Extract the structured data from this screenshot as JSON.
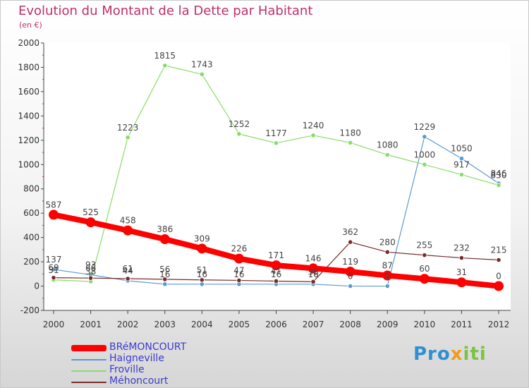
{
  "header": {
    "title": "Evolution du Montant de la Dette par Habitant",
    "unit": "(en €)"
  },
  "logo": {
    "part1": "Pro",
    "part2": "x",
    "part3": "iti"
  },
  "chart_data": {
    "type": "line",
    "title": "Evolution du Montant de la Dette par Habitant",
    "ylabel": "(en €)",
    "xlabel": "",
    "x": [
      "2000",
      "2001",
      "2002",
      "2003",
      "2004",
      "2005",
      "2006",
      "2007",
      "2008",
      "2009",
      "2010",
      "2011",
      "2012"
    ],
    "ylim": [
      -200,
      2000
    ],
    "yticks": [
      -200,
      0,
      200,
      400,
      600,
      800,
      1000,
      1200,
      1400,
      1600,
      1800,
      2000
    ],
    "grid": false,
    "legend": "bottom-left",
    "series": [
      {
        "name": "BRéMONCOURT",
        "color": "#ff0000",
        "values": [
          587,
          525,
          458,
          386,
          309,
          226,
          171,
          146,
          119,
          87,
          60,
          31,
          0
        ]
      },
      {
        "name": "Haigneville",
        "color": "#5a9bd0",
        "values": [
          137,
          93,
          44,
          16,
          16,
          16,
          16,
          16,
          0,
          0,
          1229,
          1050,
          846
        ]
      },
      {
        "name": "Froville",
        "color": "#88dd66",
        "values": [
          51,
          38,
          1223,
          1815,
          1743,
          1252,
          1177,
          1240,
          1180,
          1080,
          1000,
          917,
          830
        ]
      },
      {
        "name": "Méhoncourt",
        "color": "#7a2a2a",
        "values": [
          69,
          66,
          61,
          56,
          51,
          47,
          41,
          36,
          362,
          280,
          255,
          232,
          215
        ]
      }
    ]
  }
}
